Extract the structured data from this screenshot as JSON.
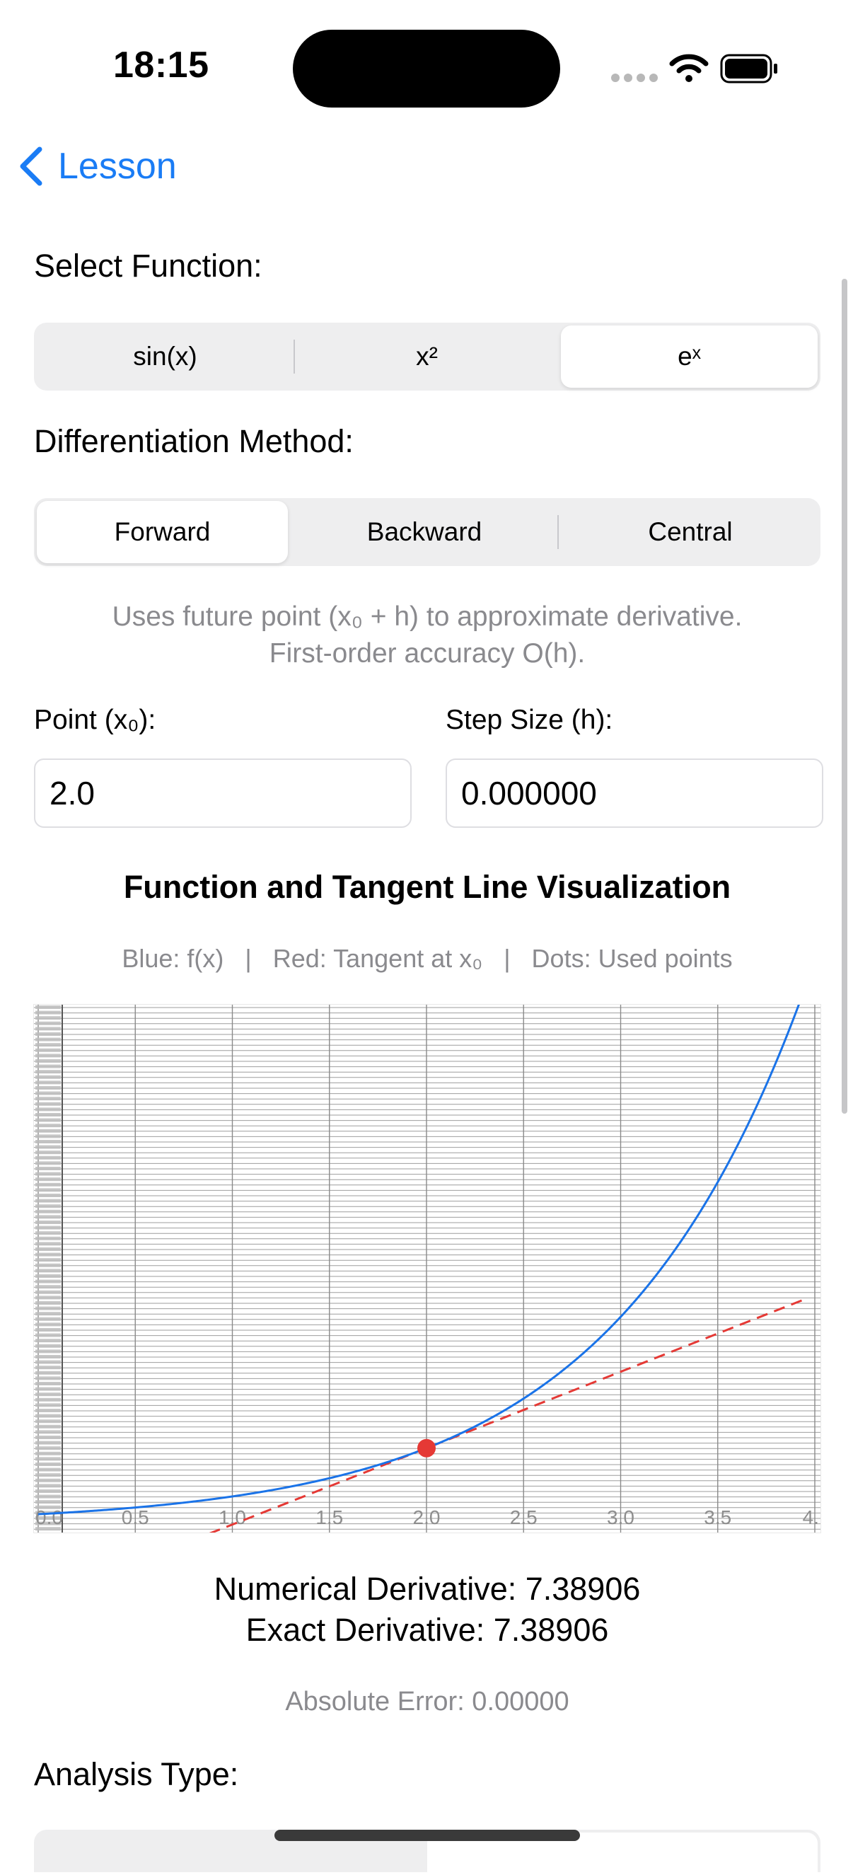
{
  "status_bar": {
    "time": "18:15"
  },
  "nav": {
    "back_label": "Lesson"
  },
  "function_section": {
    "label": "Select Function:",
    "options": [
      "sin(x)",
      "x²",
      "eˣ"
    ],
    "selected_index": 2
  },
  "method_section": {
    "label": "Differentiation Method:",
    "options": [
      "Forward",
      "Backward",
      "Central"
    ],
    "selected_index": 0,
    "description_line1": "Uses future point (x₀ + h) to approximate derivative.",
    "description_line2": "First-order accuracy O(h)."
  },
  "inputs": {
    "point_label": "Point (x₀):",
    "point_value": "2.0",
    "step_label": "Step Size (h):",
    "step_value": "0.000000"
  },
  "visualization": {
    "title": "Function and Tangent Line Visualization",
    "legend_text": "Blue: f(x)   |   Red: Tangent at x₀   |   Dots: Used points"
  },
  "chart_data": {
    "type": "line",
    "x_ticks": [
      "0.0",
      "0.5",
      "1.0",
      "1.5",
      "2.0",
      "2.5",
      "3.0",
      "3.5",
      "4."
    ],
    "xlim": [
      0,
      4
    ],
    "ylim": [
      -0.5,
      50
    ],
    "grid": true,
    "series": [
      {
        "function": "exp",
        "x_start": 0,
        "x_end": 4,
        "color": "#1a73e8"
      },
      {
        "tangent_at_x": 2.0,
        "tangent_y": 7.38906,
        "slope": 7.38906,
        "x_start": 0,
        "x_end": 3.94,
        "color": "#e53935",
        "dashed": true
      }
    ],
    "points": [
      {
        "x": 2.0,
        "y": 7.38906,
        "color": "#e53935"
      }
    ]
  },
  "results": {
    "numerical": "Numerical Derivative: 7.38906",
    "exact": "Exact Derivative: 7.38906",
    "error": "Absolute Error: 0.00000"
  },
  "analysis_section": {
    "label": "Analysis Type:"
  },
  "colors": {
    "accent": "#1a7cf5",
    "curve": "#1a73e8",
    "tangent": "#e53935",
    "muted_text": "#8a8a8e"
  }
}
